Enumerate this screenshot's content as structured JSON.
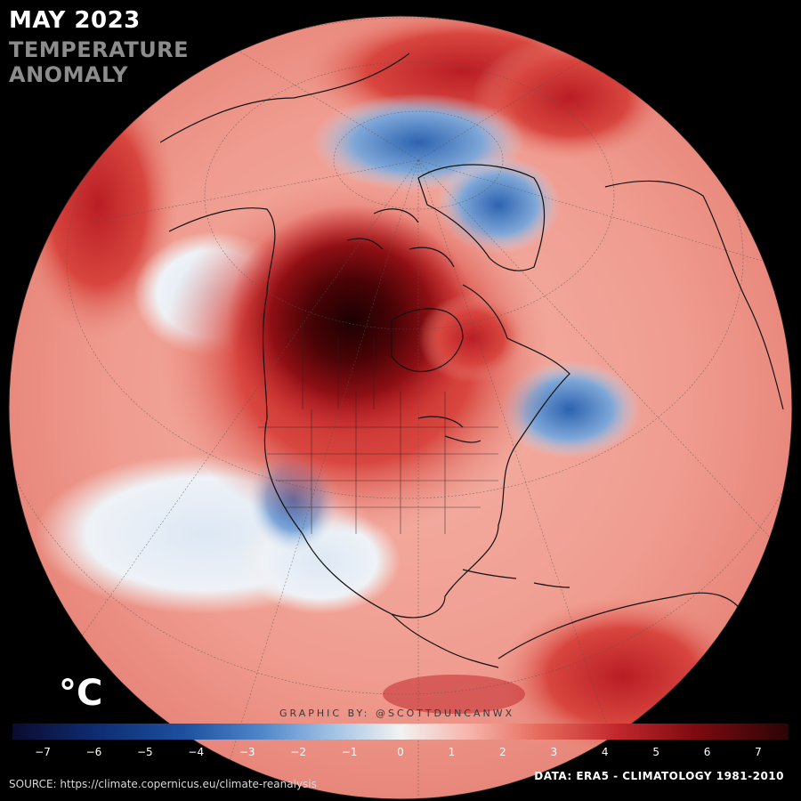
{
  "title": {
    "month": "MAY 2023",
    "line1": "TEMPERATURE",
    "line2": "ANOMALY"
  },
  "legend": {
    "unit": "°C",
    "ticks": [
      "−7",
      "−6",
      "−5",
      "−4",
      "−3",
      "−2",
      "−1",
      "0",
      "1",
      "2",
      "3",
      "4",
      "5",
      "6",
      "7"
    ],
    "range": [
      -7,
      7
    ]
  },
  "credit": "GRAPHIC BY: @SCOTTDUNCANWX",
  "source": "SOURCE: https://climate.copernicus.eu/climate-reanalysis",
  "data_note": "DATA: ERA5 - CLIMATOLOGY 1981-2010",
  "colors": {
    "background": "#000000",
    "ocean_warm": "#f3b3a9",
    "anomaly_cold": "#2b66b2",
    "anomaly_warm": "#c8262c",
    "anomaly_extreme": "#3a0204"
  }
}
